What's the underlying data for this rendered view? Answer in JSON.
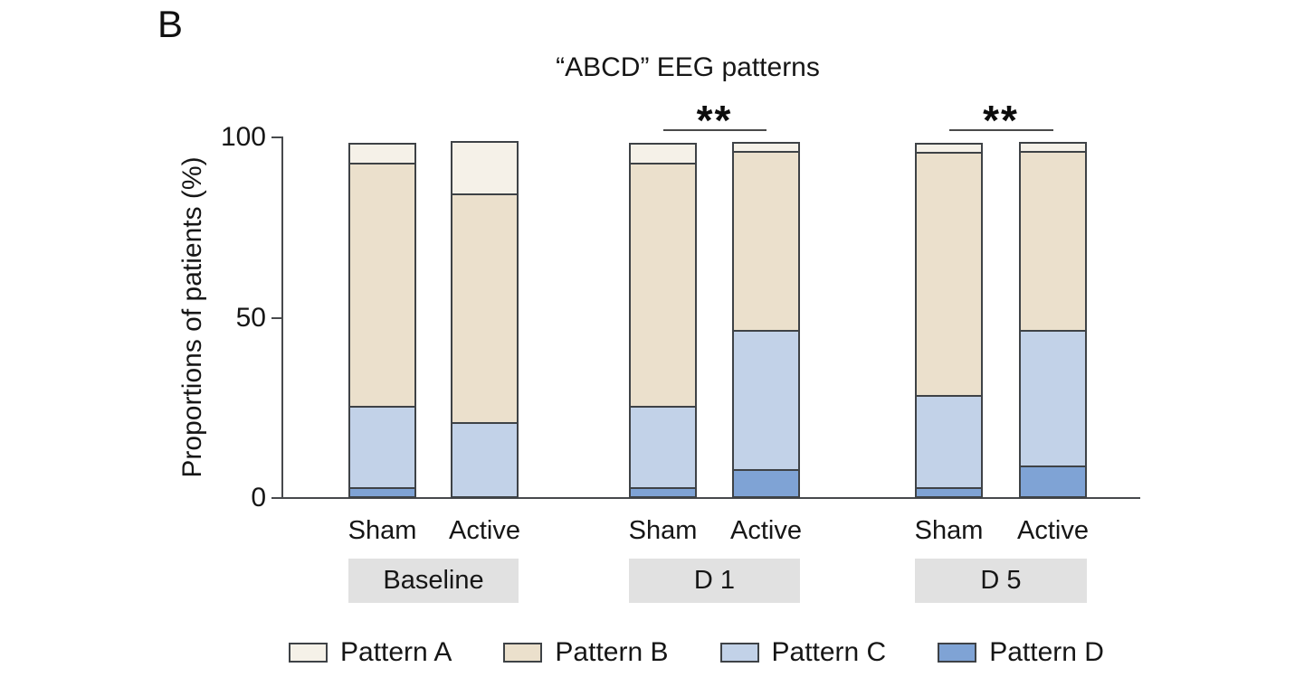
{
  "panel_label": "B",
  "title": "“ABCD” EEG patterns",
  "y_axis": {
    "label": "Proportions of patients (%)",
    "tick_labels": [
      "100",
      "50",
      "0"
    ]
  },
  "chart_data": {
    "type": "bar",
    "stacked": true,
    "title": "“ABCD” EEG patterns",
    "ylabel": "Proportions of patients (%)",
    "unit": "%",
    "ylim": [
      0,
      100
    ],
    "yticks": [
      0,
      50,
      100
    ],
    "grid": false,
    "legend_position": "bottom",
    "series_bottom_to_top": [
      "Pattern D",
      "Pattern C",
      "Pattern B",
      "Pattern A"
    ],
    "series": [
      {
        "name": "Pattern A",
        "color": "#f5f1e8"
      },
      {
        "name": "Pattern B",
        "color": "#ebe0cc"
      },
      {
        "name": "Pattern C",
        "color": "#c2d2e8"
      },
      {
        "name": "Pattern D",
        "color": "#7fa3d5"
      }
    ],
    "groups": [
      {
        "label": "Baseline",
        "significance": null,
        "bars": [
          {
            "label": "Sham",
            "segments": {
              "Pattern A": 6,
              "Pattern B": 68,
              "Pattern C": 23,
              "Pattern D": 3
            }
          },
          {
            "label": "Active",
            "segments": {
              "Pattern A": 15,
              "Pattern B": 64,
              "Pattern C": 21,
              "Pattern D": 0
            }
          }
        ]
      },
      {
        "label": "D 1",
        "significance": "**",
        "bars": [
          {
            "label": "Sham",
            "segments": {
              "Pattern A": 6,
              "Pattern B": 68,
              "Pattern C": 23,
              "Pattern D": 3
            }
          },
          {
            "label": "Active",
            "segments": {
              "Pattern A": 3,
              "Pattern B": 50,
              "Pattern C": 39,
              "Pattern D": 8
            }
          }
        ]
      },
      {
        "label": "D 5",
        "significance": "**",
        "bars": [
          {
            "label": "Sham",
            "segments": {
              "Pattern A": 3,
              "Pattern B": 68,
              "Pattern C": 26,
              "Pattern D": 3
            }
          },
          {
            "label": "Active",
            "segments": {
              "Pattern A": 3,
              "Pattern B": 50,
              "Pattern C": 38,
              "Pattern D": 9
            }
          }
        ]
      }
    ]
  }
}
